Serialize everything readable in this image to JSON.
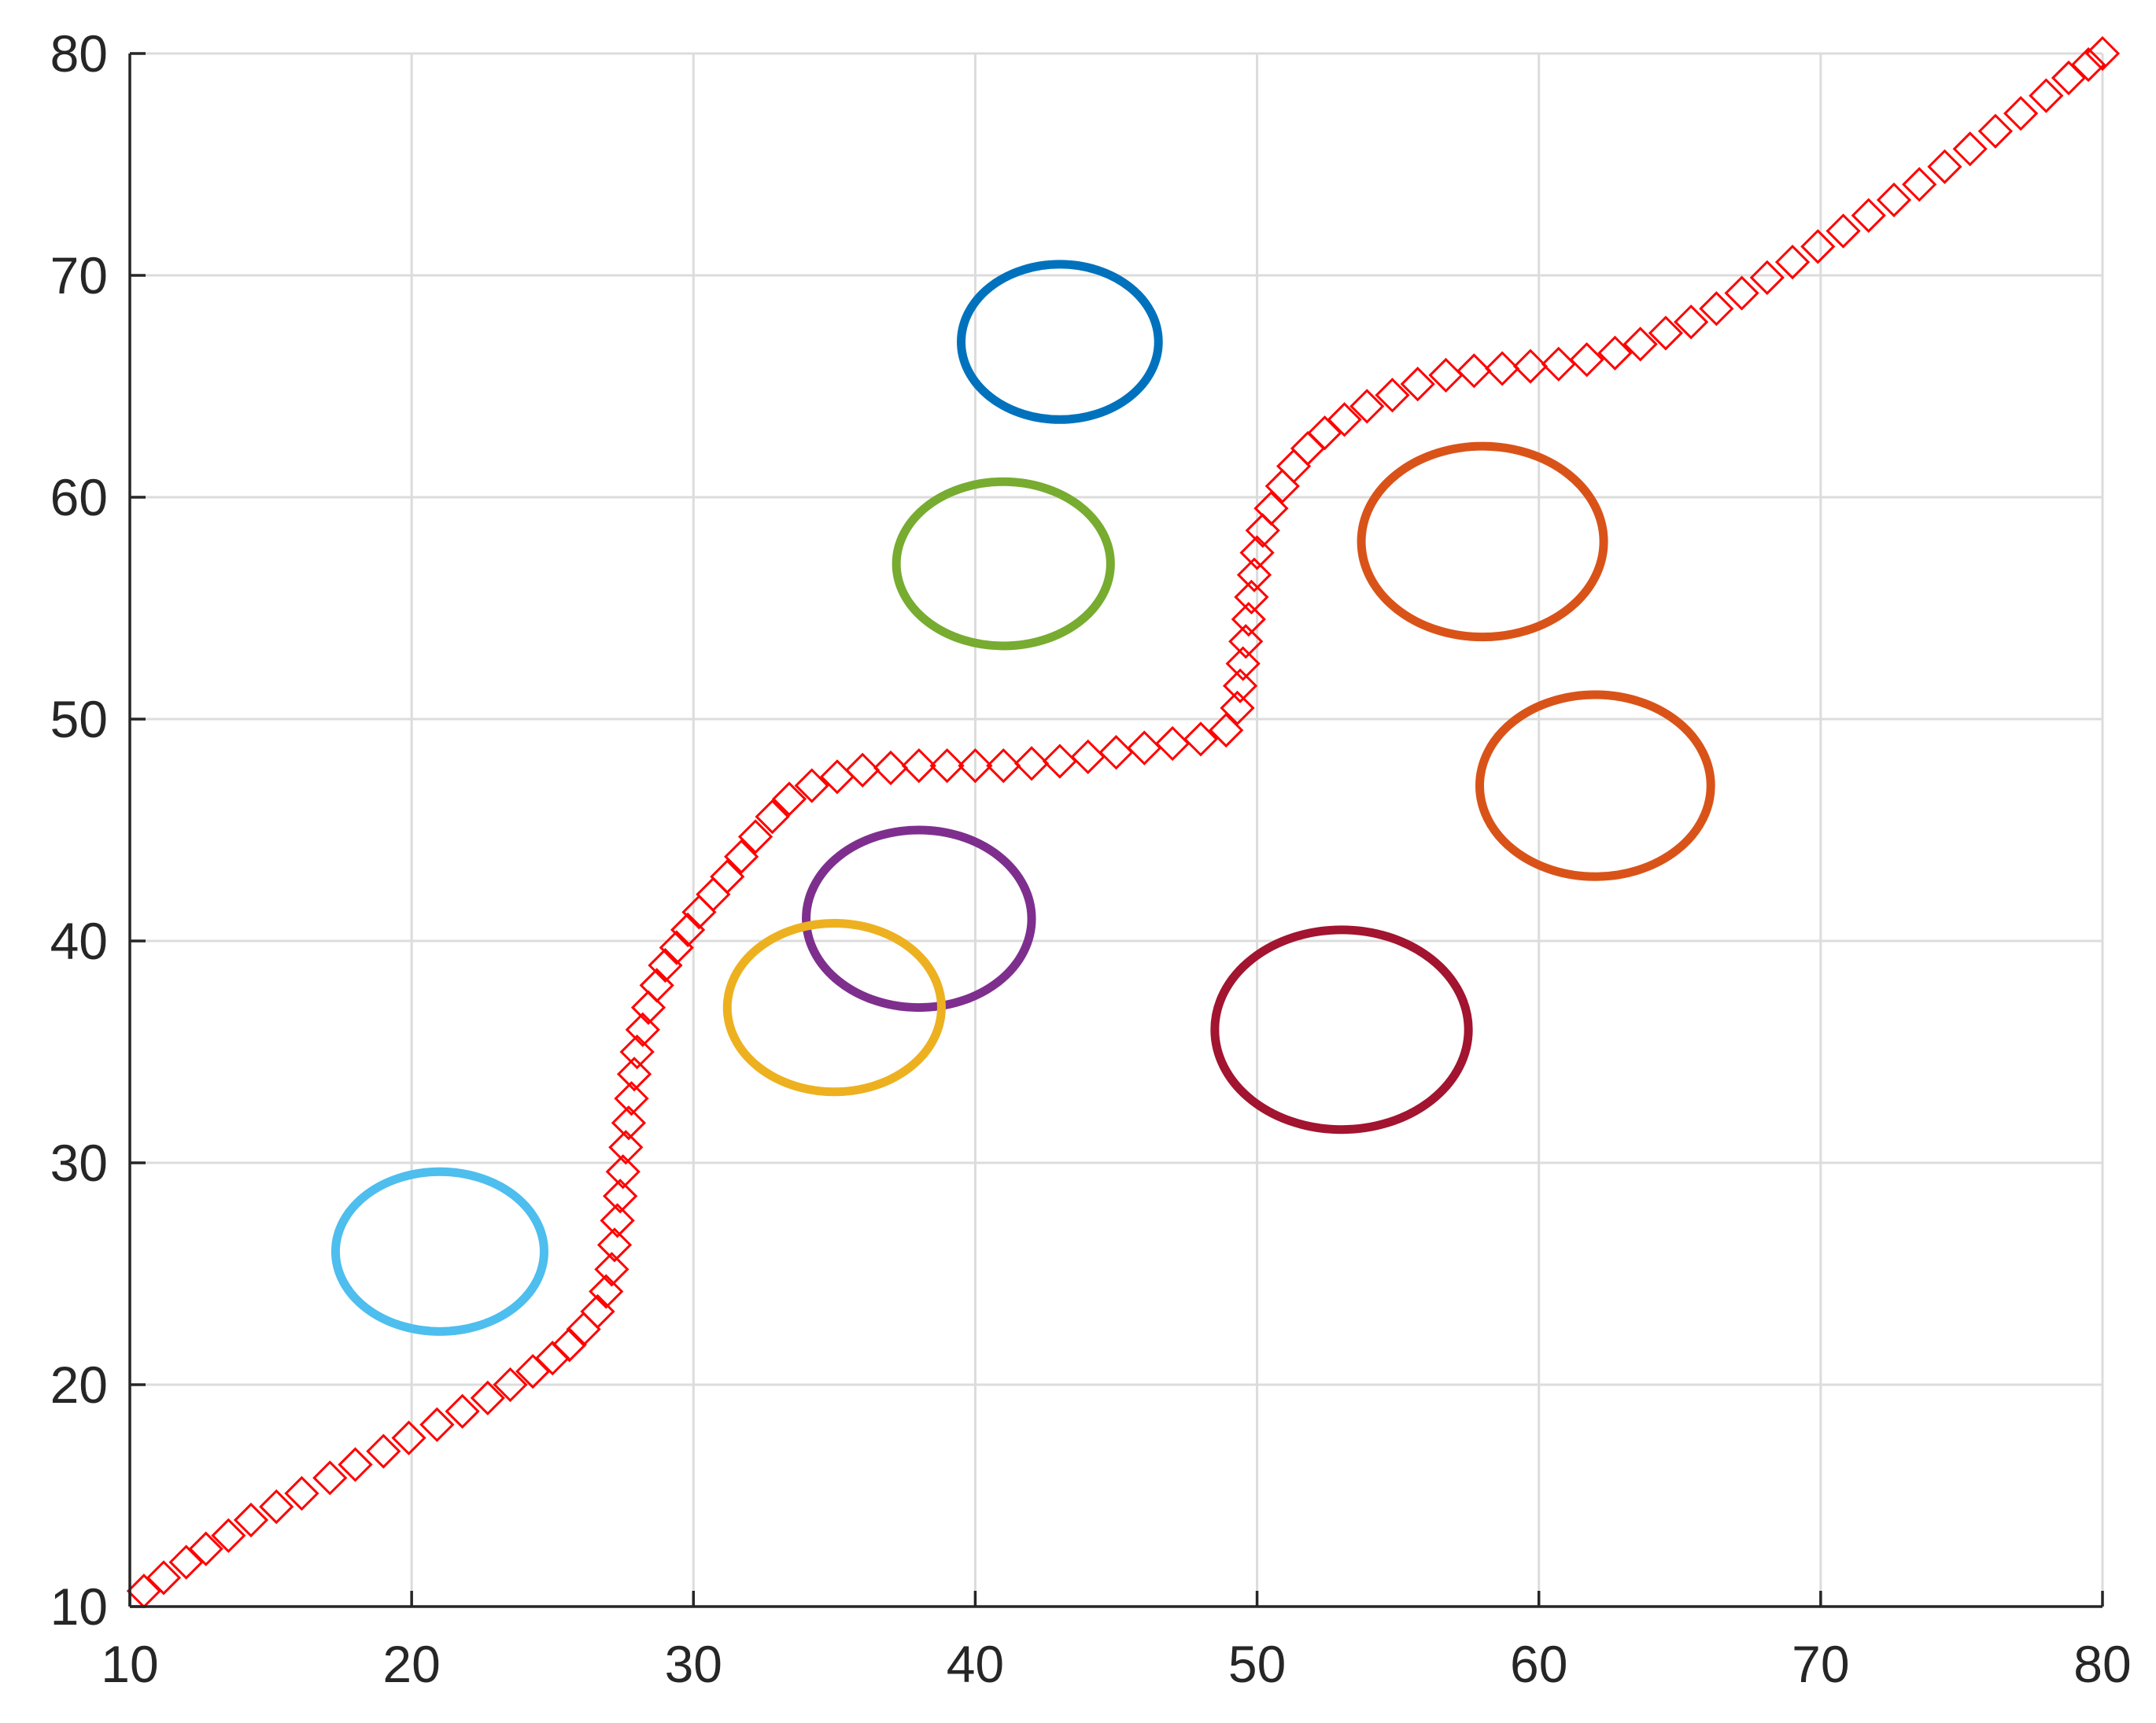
{
  "chart_data": {
    "type": "scatter",
    "title": "",
    "xlabel": "",
    "ylabel": "",
    "xlim": [
      10,
      80
    ],
    "ylim": [
      10,
      80
    ],
    "grid": true,
    "xticks": [
      "10",
      "20",
      "30",
      "40",
      "50",
      "60",
      "70",
      "80"
    ],
    "yticks": [
      "10",
      "20",
      "30",
      "40",
      "50",
      "60",
      "70",
      "80"
    ],
    "series": [
      {
        "marker": "diamond-open",
        "color": "#ff0000",
        "points": [
          [
            10.5,
            10.7
          ],
          [
            11.2,
            11.3
          ],
          [
            12.0,
            12.0
          ],
          [
            12.7,
            12.6
          ],
          [
            13.5,
            13.2
          ],
          [
            14.3,
            13.9
          ],
          [
            15.2,
            14.5
          ],
          [
            16.1,
            15.1
          ],
          [
            17.1,
            15.8
          ],
          [
            18.0,
            16.4
          ],
          [
            19.0,
            17.0
          ],
          [
            19.9,
            17.6
          ],
          [
            20.9,
            18.2
          ],
          [
            21.8,
            18.8
          ],
          [
            22.7,
            19.4
          ],
          [
            23.5,
            20.0
          ],
          [
            24.3,
            20.6
          ],
          [
            25.0,
            21.2
          ],
          [
            25.6,
            21.8
          ],
          [
            26.1,
            22.5
          ],
          [
            26.6,
            23.3
          ],
          [
            26.9,
            24.2
          ],
          [
            27.1,
            25.2
          ],
          [
            27.2,
            26.3
          ],
          [
            27.3,
            27.4
          ],
          [
            27.4,
            28.5
          ],
          [
            27.5,
            29.6
          ],
          [
            27.6,
            30.7
          ],
          [
            27.7,
            31.8
          ],
          [
            27.8,
            32.9
          ],
          [
            27.9,
            34.0
          ],
          [
            28.0,
            35.0
          ],
          [
            28.2,
            36.0
          ],
          [
            28.4,
            37.0
          ],
          [
            28.7,
            38.0
          ],
          [
            29.0,
            38.9
          ],
          [
            29.4,
            39.7
          ],
          [
            29.8,
            40.5
          ],
          [
            30.2,
            41.3
          ],
          [
            30.7,
            42.1
          ],
          [
            31.2,
            42.9
          ],
          [
            31.7,
            43.8
          ],
          [
            32.2,
            44.7
          ],
          [
            32.8,
            45.6
          ],
          [
            33.4,
            46.4
          ],
          [
            34.2,
            47.0
          ],
          [
            35.1,
            47.4
          ],
          [
            36.0,
            47.7
          ],
          [
            37.0,
            47.8
          ],
          [
            38.0,
            47.9
          ],
          [
            39.0,
            47.9
          ],
          [
            40.0,
            47.9
          ],
          [
            41.0,
            47.9
          ],
          [
            42.0,
            48.0
          ],
          [
            43.0,
            48.1
          ],
          [
            44.0,
            48.3
          ],
          [
            45.0,
            48.5
          ],
          [
            46.0,
            48.7
          ],
          [
            47.0,
            48.9
          ],
          [
            48.0,
            49.1
          ],
          [
            48.9,
            49.5
          ],
          [
            49.3,
            50.5
          ],
          [
            49.4,
            51.5
          ],
          [
            49.5,
            52.5
          ],
          [
            49.6,
            53.5
          ],
          [
            49.7,
            54.5
          ],
          [
            49.8,
            55.5
          ],
          [
            49.9,
            56.5
          ],
          [
            50.0,
            57.5
          ],
          [
            50.2,
            58.5
          ],
          [
            50.5,
            59.5
          ],
          [
            50.9,
            60.5
          ],
          [
            51.3,
            61.4
          ],
          [
            51.8,
            62.2
          ],
          [
            52.4,
            62.9
          ],
          [
            53.1,
            63.5
          ],
          [
            53.9,
            64.1
          ],
          [
            54.8,
            64.6
          ],
          [
            55.7,
            65.1
          ],
          [
            56.7,
            65.5
          ],
          [
            57.7,
            65.7
          ],
          [
            58.7,
            65.8
          ],
          [
            59.7,
            65.9
          ],
          [
            60.7,
            66.0
          ],
          [
            61.7,
            66.2
          ],
          [
            62.7,
            66.5
          ],
          [
            63.6,
            66.9
          ],
          [
            64.5,
            67.4
          ],
          [
            65.4,
            67.9
          ],
          [
            66.3,
            68.5
          ],
          [
            67.2,
            69.2
          ],
          [
            68.1,
            69.9
          ],
          [
            69.0,
            70.6
          ],
          [
            69.9,
            71.3
          ],
          [
            70.8,
            72.0
          ],
          [
            71.7,
            72.7
          ],
          [
            72.6,
            73.4
          ],
          [
            73.5,
            74.1
          ],
          [
            74.4,
            74.9
          ],
          [
            75.3,
            75.7
          ],
          [
            76.2,
            76.5
          ],
          [
            77.1,
            77.3
          ],
          [
            78.0,
            78.1
          ],
          [
            78.8,
            78.9
          ],
          [
            79.5,
            79.5
          ],
          [
            80.0,
            80.0
          ]
        ]
      }
    ],
    "ellipses": [
      {
        "cx": 43,
        "cy": 67,
        "rx": 3.5,
        "ry": 3.5,
        "color": "#0072bd"
      },
      {
        "cx": 41,
        "cy": 57,
        "rx": 3.8,
        "ry": 3.7,
        "color": "#77ac30"
      },
      {
        "cx": 58,
        "cy": 58,
        "rx": 4.3,
        "ry": 4.3,
        "color": "#d95319"
      },
      {
        "cx": 62,
        "cy": 47,
        "rx": 4.1,
        "ry": 4.1,
        "color": "#d95319"
      },
      {
        "cx": 38,
        "cy": 41,
        "rx": 4.0,
        "ry": 4.0,
        "color": "#7e2f8e"
      },
      {
        "cx": 35,
        "cy": 37,
        "rx": 3.8,
        "ry": 3.8,
        "color": "#edb120"
      },
      {
        "cx": 53,
        "cy": 36,
        "rx": 4.5,
        "ry": 4.5,
        "color": "#a2142f"
      },
      {
        "cx": 21,
        "cy": 26,
        "rx": 3.7,
        "ry": 3.6,
        "color": "#4dbeee"
      }
    ]
  }
}
